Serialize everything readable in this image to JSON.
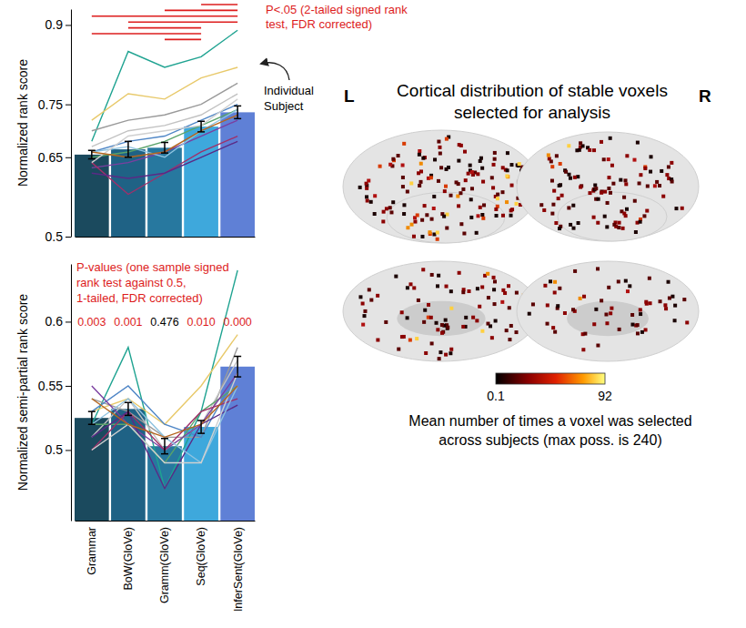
{
  "chart_data": [
    {
      "type": "bar",
      "y_label": "Normalized rank score",
      "categories": [
        "Grammar",
        "BoW(GloVe)",
        "Gramm(GloVe)",
        "Seq(GloVe)",
        "InferSent(GloVe)"
      ],
      "values": [
        0.655,
        0.665,
        0.668,
        0.708,
        0.735
      ],
      "errors": [
        0.008,
        0.015,
        0.01,
        0.01,
        0.012
      ],
      "colors": [
        "#1b4a5e",
        "#1f6285",
        "#27789f",
        "#3ea8dc",
        "#5f80d6"
      ],
      "ylim": [
        0.5,
        0.93
      ],
      "yticks": [
        0.5,
        0.65,
        0.75,
        0.9
      ],
      "tick_labels": "y",
      "subjects": [
        {
          "color": "#1fa391",
          "values": [
            0.68,
            0.85,
            0.82,
            0.84,
            0.89
          ]
        },
        {
          "color": "#e8c96a",
          "values": [
            0.72,
            0.77,
            0.76,
            0.8,
            0.82
          ]
        },
        {
          "color": "#9a9a9a",
          "values": [
            0.7,
            0.72,
            0.73,
            0.75,
            0.79
          ]
        },
        {
          "color": "#c2c2c2",
          "values": [
            0.67,
            0.7,
            0.71,
            0.73,
            0.77
          ]
        },
        {
          "color": "#4f86c6",
          "values": [
            0.66,
            0.68,
            0.69,
            0.72,
            0.75
          ]
        },
        {
          "color": "#5aa36a",
          "values": [
            0.65,
            0.66,
            0.68,
            0.71,
            0.74
          ]
        },
        {
          "color": "#7b3fa0",
          "values": [
            0.63,
            0.64,
            0.66,
            0.69,
            0.72
          ]
        },
        {
          "color": "#a0306a",
          "values": [
            0.64,
            0.58,
            0.62,
            0.66,
            0.69
          ]
        },
        {
          "color": "#5b2a86",
          "values": [
            0.62,
            0.61,
            0.62,
            0.65,
            0.68
          ]
        },
        {
          "color": "#8ec3e0",
          "values": [
            0.66,
            0.67,
            0.65,
            0.7,
            0.74
          ]
        },
        {
          "color": "#d0d0d0",
          "values": [
            0.64,
            0.69,
            0.7,
            0.71,
            0.76
          ]
        },
        {
          "color": "#b5651d",
          "values": [
            0.66,
            0.65,
            0.66,
            0.7,
            0.73
          ]
        }
      ],
      "significance": {
        "text": [
          "P<.05 (2-tailed signed rank",
          "test, FDR corrected)"
        ],
        "color": "#dd1c1c",
        "pairs": [
          [
            "Seq(GloVe)",
            "InferSent(GloVe)"
          ],
          [
            "Gramm(GloVe)",
            "InferSent(GloVe)"
          ],
          [
            "Grammar",
            "InferSent(GloVe)"
          ],
          [
            "BoW(GloVe)",
            "InferSent(GloVe)"
          ],
          [
            "BoW(GloVe)",
            "Seq(GloVe)"
          ],
          [
            "Grammar",
            "Seq(GloVe)"
          ],
          [
            "Gramm(GloVe)",
            "Seq(GloVe)"
          ]
        ]
      },
      "subject_note": {
        "text": [
          "Individual",
          "Subject"
        ]
      }
    },
    {
      "type": "bar",
      "y_label": "Normalized semi-partial rank score",
      "categories": [
        "Grammar",
        "BoW(GloVe)",
        "Gramm(GloVe)",
        "Seq(GloVe)",
        "InferSent(GloVe)"
      ],
      "values": [
        0.525,
        0.532,
        0.503,
        0.518,
        0.565
      ],
      "errors": [
        0.005,
        0.005,
        0.006,
        0.005,
        0.008
      ],
      "colors": [
        "#1b4a5e",
        "#1f6285",
        "#27789f",
        "#3ea8dc",
        "#5f80d6"
      ],
      "ylim": [
        0.445,
        0.645
      ],
      "yticks": [
        0.5,
        0.55,
        0.6
      ],
      "subjects": [
        {
          "color": "#1fa391",
          "values": [
            0.52,
            0.58,
            0.47,
            0.53,
            0.64
          ]
        },
        {
          "color": "#e8c96a",
          "values": [
            0.53,
            0.54,
            0.52,
            0.55,
            0.59
          ]
        },
        {
          "color": "#9a9a9a",
          "values": [
            0.54,
            0.53,
            0.51,
            0.51,
            0.58
          ]
        },
        {
          "color": "#c2c2c2",
          "values": [
            0.51,
            0.54,
            0.5,
            0.52,
            0.57
          ]
        },
        {
          "color": "#4f86c6",
          "values": [
            0.53,
            0.55,
            0.52,
            0.51,
            0.56
          ]
        },
        {
          "color": "#5aa36a",
          "values": [
            0.52,
            0.52,
            0.49,
            0.53,
            0.55
          ]
        },
        {
          "color": "#7b3fa0",
          "values": [
            0.55,
            0.52,
            0.5,
            0.52,
            0.56
          ]
        },
        {
          "color": "#a0306a",
          "values": [
            0.5,
            0.53,
            0.5,
            0.53,
            0.54
          ]
        },
        {
          "color": "#5b2a86",
          "values": [
            0.51,
            0.53,
            0.47,
            0.52,
            0.535
          ]
        },
        {
          "color": "#8ec3e0",
          "values": [
            0.52,
            0.54,
            0.51,
            0.49,
            0.55
          ]
        },
        {
          "color": "#d0d0d0",
          "values": [
            0.5,
            0.52,
            0.49,
            0.49,
            0.56
          ]
        },
        {
          "color": "#b5651d",
          "values": [
            0.54,
            0.52,
            0.51,
            0.52,
            0.55
          ]
        }
      ],
      "p_values": {
        "text": [
          "P-values (one sample signed",
          "rank test against 0.5,",
          "1-tailed, FDR corrected)"
        ],
        "values": [
          0.003,
          0.001,
          0.476,
          0.01,
          0.0
        ],
        "value_labels": [
          "0.003",
          "0.001",
          "0.476",
          "0.010",
          "0.000"
        ],
        "colors": [
          "#dd1c1c",
          "#dd1c1c",
          "#000000",
          "#dd1c1c",
          "#dd1c1c"
        ]
      }
    }
  ],
  "brain_panel": {
    "title": [
      "Cortical distribution of stable voxels",
      "selected for analysis"
    ],
    "hemisphere_labels": [
      "L",
      "R"
    ],
    "colorbar": {
      "range": [
        0.1,
        92
      ],
      "ticks": [
        0.1,
        92
      ]
    },
    "caption": [
      "Mean number of times a voxel was selected",
      "across subjects (max poss. is 240)"
    ]
  }
}
